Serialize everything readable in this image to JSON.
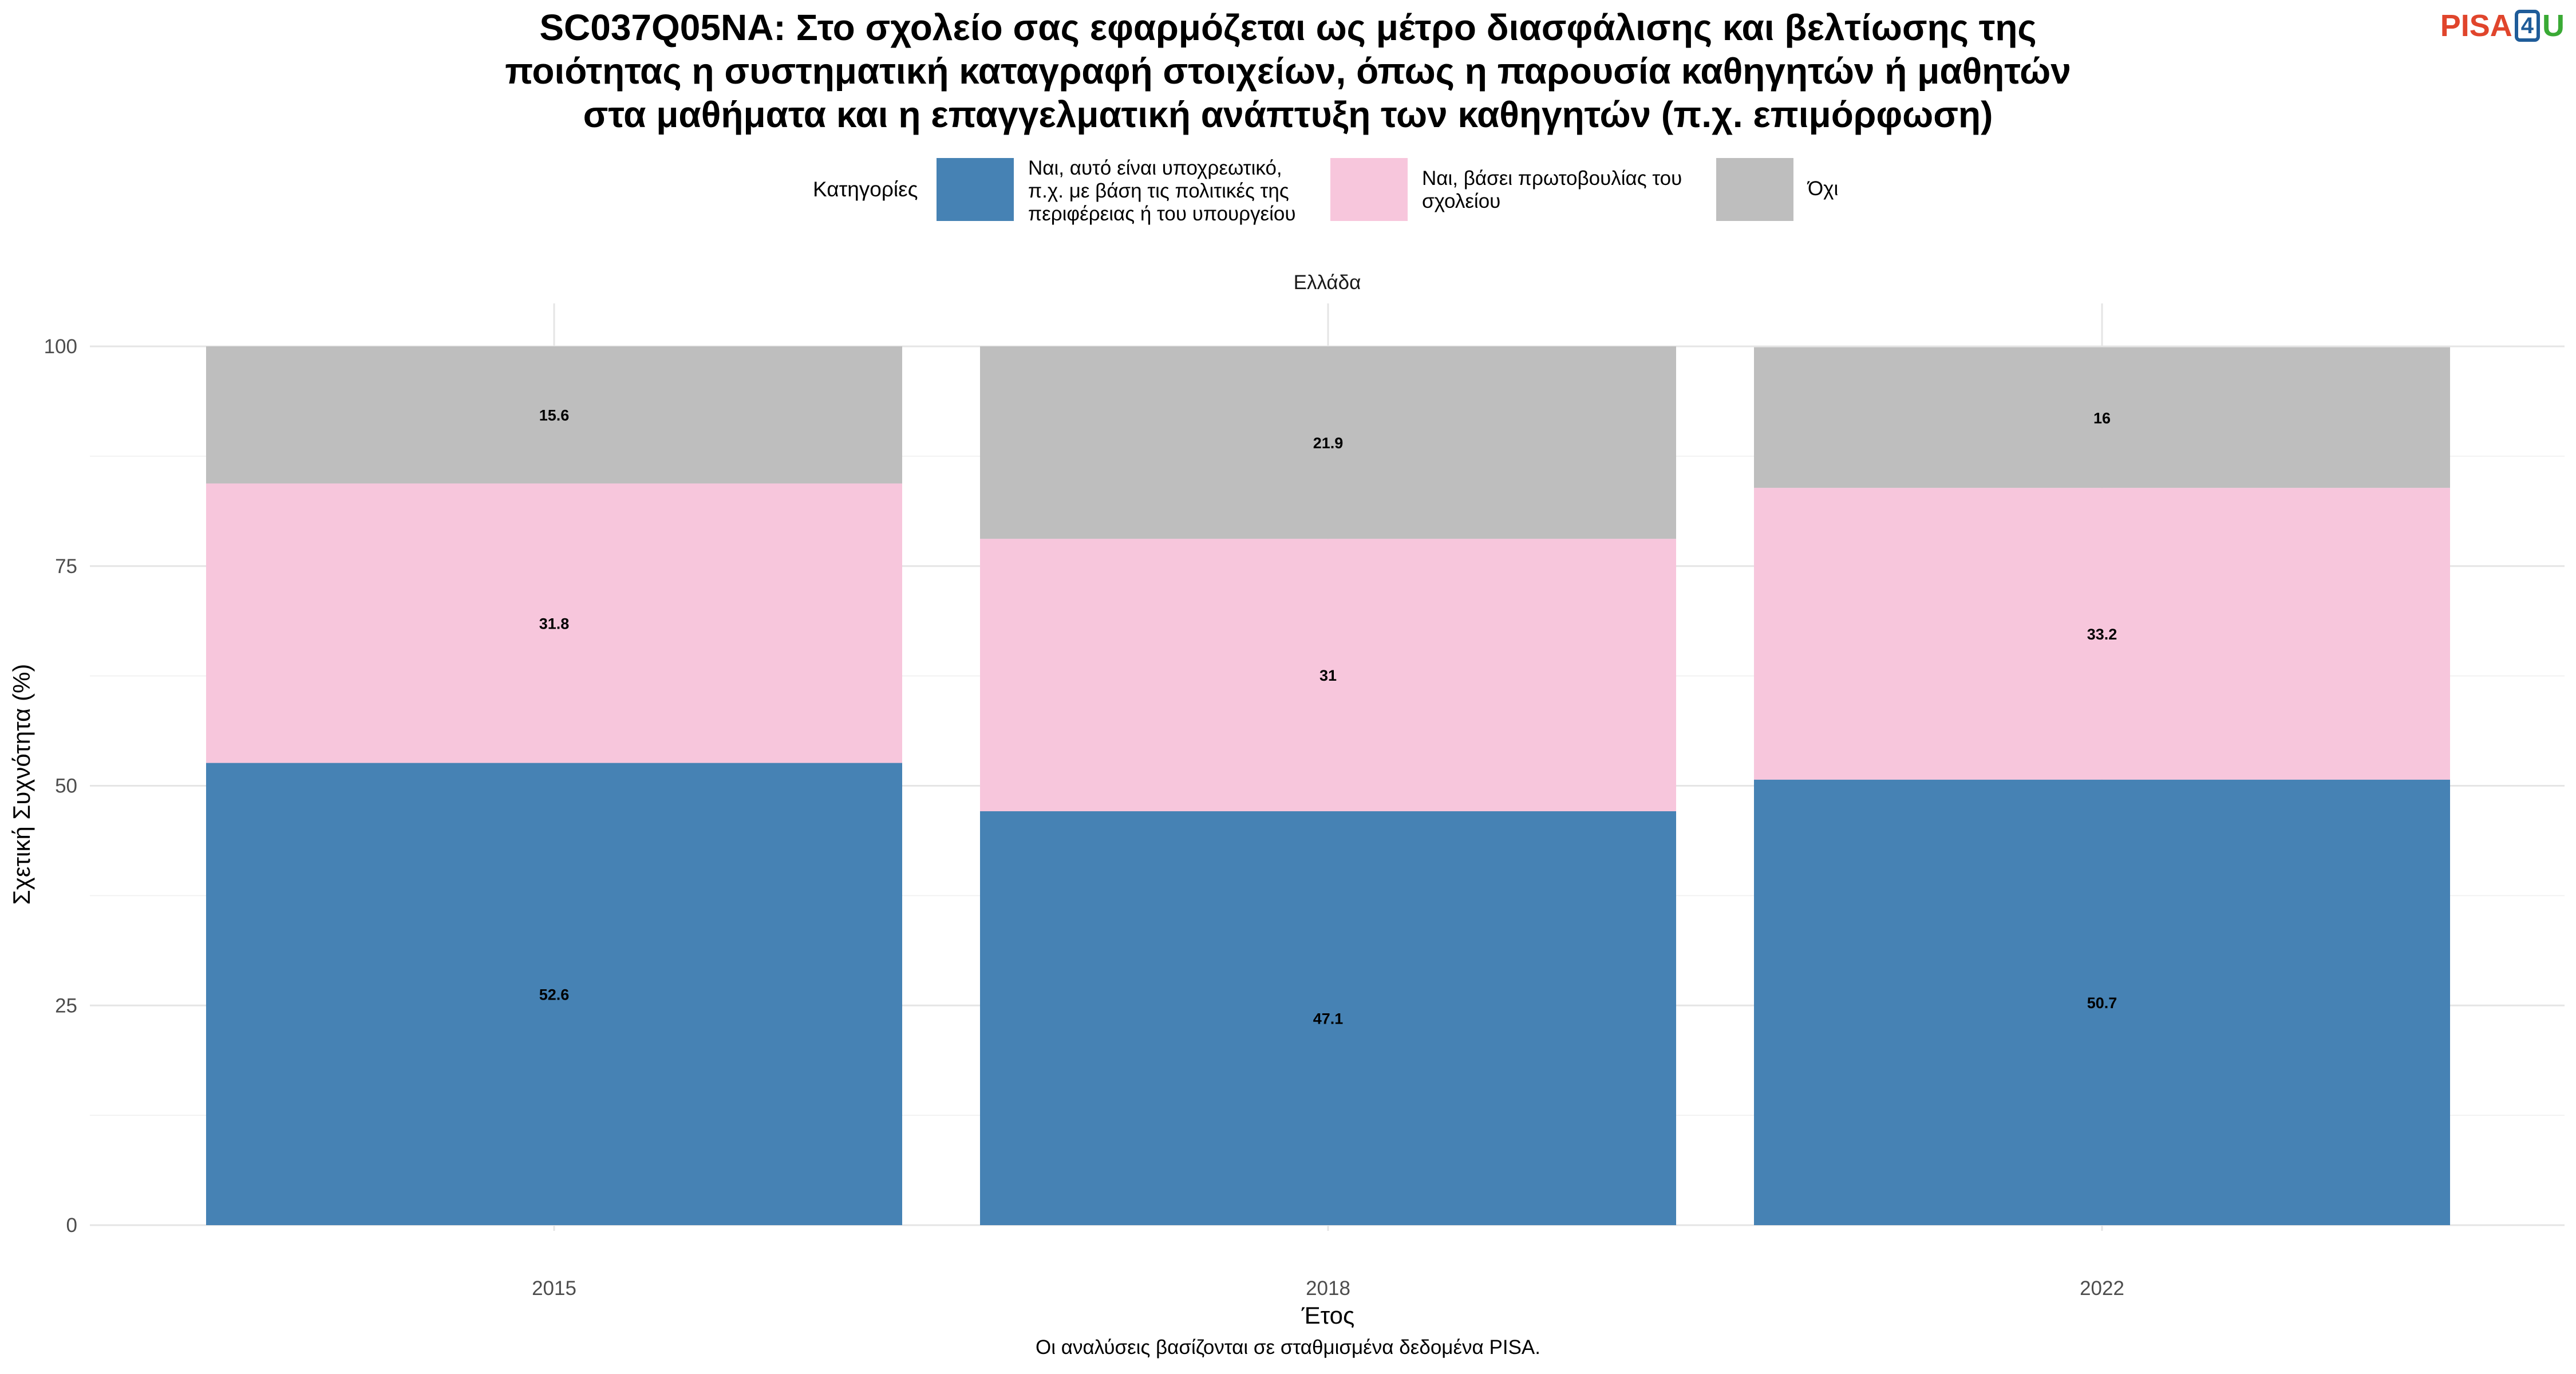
{
  "title": {
    "line1": "SC037Q05NA: Στο σχολείο σας εφαρμόζεται ως μέτρο διασφάλισης και βελτίωσης της",
    "line2": "ποιότητας η συστηματική καταγραφή στοιχείων, όπως η παρουσία καθηγητών ή μαθητών",
    "line3": "στα μαθήματα και η επαγγελματική ανάπτυξη των καθηγητών (π.χ. επιμόρφωση)"
  },
  "logo": {
    "part1": "PISA",
    "part2": "4",
    "part3": "U"
  },
  "legend": {
    "title": "Κατηγορίες",
    "items": [
      {
        "lines": [
          "Ναι, αυτό είναι υποχρεωτικό,",
          "π.χ. με βάση τις πολιτικές της",
          "περιφέρειας ή του υπουργείου"
        ],
        "color": "#4682b4"
      },
      {
        "lines": [
          "Ναι, βάσει πρωτοβουλίας του",
          "σχολείου"
        ],
        "color": "#f7c6dc"
      },
      {
        "lines": [
          "Όχι"
        ],
        "color": "#bebebe"
      }
    ]
  },
  "caption": "Οι αναλύσεις βασίζονται σε σταθμισμένα δεδομένα PISA.",
  "chart_data": {
    "type": "bar",
    "stacked": true,
    "facet_label": "Ελλάδα",
    "categories": [
      "2015",
      "2018",
      "2022"
    ],
    "series": [
      {
        "name": "Ναι, αυτό είναι υποχρεωτικό, π.χ. με βάση τις πολιτικές της περιφέρειας ή του υπουργείου",
        "color": "#4682b4",
        "values": [
          52.6,
          47.1,
          50.7
        ],
        "labels": [
          "52.6",
          "47.1",
          "50.7"
        ]
      },
      {
        "name": "Ναι, βάσει πρωτοβουλίας του σχολείου",
        "color": "#f7c6dc",
        "values": [
          31.8,
          31.0,
          33.2
        ],
        "labels": [
          "31.8",
          "31",
          "33.2"
        ]
      },
      {
        "name": "Όχι",
        "color": "#bebebe",
        "values": [
          15.6,
          21.9,
          16.0
        ],
        "labels": [
          "15.6",
          "21.9",
          "16"
        ]
      }
    ],
    "xlabel": "Έτος",
    "ylabel": "Σχετική Συχνότητα (%)",
    "ylim": [
      0,
      100
    ],
    "yticks": [
      0,
      25,
      50,
      75,
      100
    ],
    "grid": true,
    "legend_position": "top"
  }
}
